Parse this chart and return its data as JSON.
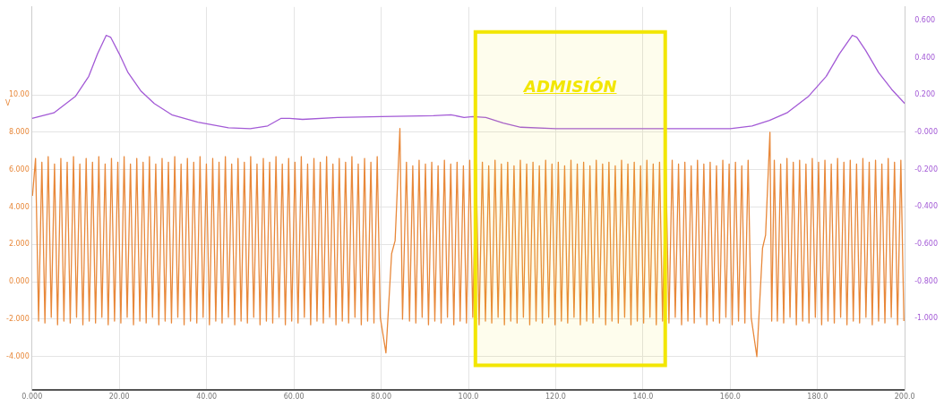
{
  "chart_data": {
    "type": "line",
    "ylabel": "V",
    "grid": true,
    "legend": false,
    "xlim": [
      0,
      200
    ],
    "ylim": [
      -5.8,
      14.7
    ],
    "y2lim": [
      -1.384,
      0.672
    ],
    "xticks": [
      {
        "value": 0,
        "label": "0.000"
      },
      {
        "value": 20,
        "label": "20.00"
      },
      {
        "value": 40,
        "label": "40.00"
      },
      {
        "value": 60,
        "label": "60.00"
      },
      {
        "value": 80,
        "label": "80.00"
      },
      {
        "value": 100,
        "label": "100.0"
      },
      {
        "value": 120,
        "label": "120.0"
      },
      {
        "value": 140,
        "label": "140.0"
      },
      {
        "value": 160,
        "label": "160.0"
      },
      {
        "value": 180,
        "label": "180.0"
      },
      {
        "value": 200,
        "label": "200.0"
      }
    ],
    "yticks": [
      {
        "value": -4,
        "label": "-4.000"
      },
      {
        "value": -2,
        "label": "-2.000"
      },
      {
        "value": 0,
        "label": "0.000"
      },
      {
        "value": 2,
        "label": "2.000"
      },
      {
        "value": 4,
        "label": "4.000"
      },
      {
        "value": 6,
        "label": "6.000"
      },
      {
        "value": 8,
        "label": "8.000"
      },
      {
        "value": 10,
        "label": "10.00"
      }
    ],
    "y2ticks": [
      {
        "value": -1,
        "label": "-1.000"
      },
      {
        "value": -0.8,
        "label": "-0.800"
      },
      {
        "value": -0.6,
        "label": "-0.600"
      },
      {
        "value": -0.4,
        "label": "-0.400"
      },
      {
        "value": -0.2,
        "label": "-0.200"
      },
      {
        "value": 0,
        "label": "-0.000"
      },
      {
        "value": 0.2,
        "label": "0.200"
      },
      {
        "value": 0.4,
        "label": "0.400"
      },
      {
        "value": 0.6,
        "label": "0.600"
      }
    ],
    "bands": [
      {
        "axis": "x",
        "from": 101.6,
        "to": 145.1,
        "label": "ADMISIÓN",
        "color": "#f2e600"
      }
    ],
    "series": [
      {
        "color": "#e8883a",
        "x": [
          0.1,
          0.8,
          1.5,
          2.25,
          2.95,
          3.7,
          4.4,
          5.15,
          5.85,
          6.6,
          7.3,
          8.05,
          8.75,
          9.5,
          10.2,
          10.95,
          11.65,
          12.4,
          13.1,
          13.85,
          14.55,
          15.3,
          16,
          16.75,
          17.45,
          18.2,
          18.9,
          19.65,
          20.35,
          21.1,
          21.8,
          22.55,
          23.25,
          24,
          24.7,
          25.45,
          26.15,
          26.9,
          27.6,
          28.35,
          29.05,
          29.8,
          30.5,
          31.25,
          31.95,
          32.7,
          33.4,
          34.15,
          34.85,
          35.6,
          36.3,
          37.05,
          37.75,
          38.5,
          39.2,
          39.95,
          40.65,
          41.4,
          42.1,
          42.85,
          43.55,
          44.3,
          45,
          45.75,
          46.45,
          47.2,
          47.9,
          48.65,
          49.35,
          50.1,
          50.8,
          51.55,
          52.25,
          53,
          53.7,
          54.45,
          55.15,
          55.9,
          56.6,
          57.35,
          58.05,
          58.8,
          59.5,
          60.25,
          60.95,
          61.7,
          62.4,
          63.15,
          63.85,
          64.6,
          65.3,
          66.05,
          66.75,
          67.5,
          68.2,
          68.95,
          69.65,
          70.4,
          71.1,
          71.85,
          72.55,
          73.3,
          74,
          74.75,
          75.45,
          76.2,
          76.9,
          77.65,
          78.35,
          79.1,
          79.8,
          81.1,
          82.4,
          83.2,
          84.3,
          84.9,
          85.8,
          86.5,
          87.25,
          87.95,
          88.7,
          89.4,
          90.15,
          90.85,
          91.6,
          92.3,
          93.05,
          93.75,
          94.5,
          95.2,
          95.95,
          96.65,
          97.4,
          98.1,
          98.85,
          99.55,
          100.3,
          101,
          101.75,
          102.45,
          103.2,
          103.9,
          104.65,
          105.35,
          106.1,
          106.8,
          107.55,
          108.25,
          109,
          109.7,
          110.45,
          111.15,
          111.9,
          112.6,
          113.35,
          114.05,
          114.8,
          115.5,
          116.25,
          116.95,
          117.7,
          118.4,
          119.15,
          119.85,
          120.6,
          121.3,
          122.05,
          122.75,
          123.5,
          124.2,
          124.95,
          125.65,
          126.4,
          127.1,
          127.85,
          128.55,
          129.3,
          130,
          130.75,
          131.45,
          132.2,
          132.9,
          133.65,
          134.35,
          135.1,
          135.8,
          136.55,
          137.25,
          138,
          138.7,
          139.45,
          140.15,
          140.9,
          141.6,
          142.35,
          143.05,
          143.8,
          144.5,
          145.25,
          145.95,
          146.7,
          147.4,
          148.15,
          148.85,
          149.6,
          150.3,
          151.05,
          151.75,
          152.5,
          153.2,
          153.95,
          154.65,
          155.4,
          156.1,
          156.85,
          157.55,
          158.3,
          159,
          159.75,
          160.45,
          161.2,
          161.9,
          162.65,
          163.35,
          164.1,
          164.8,
          166.1,
          167.4,
          168.1,
          169.1,
          169.5,
          170.1,
          170.8,
          171.55,
          172.25,
          173,
          173.7,
          174.45,
          175.15,
          175.9,
          176.6,
          177.35,
          178.05,
          178.8,
          179.5,
          180.25,
          180.95,
          181.7,
          182.4,
          183.15,
          183.85,
          184.6,
          185.3,
          186.05,
          186.75,
          187.5,
          188.2,
          188.95,
          189.65,
          190.4,
          191.1,
          191.85,
          192.55,
          193.3,
          194,
          194.75,
          195.45,
          196.2,
          196.9,
          197.65,
          198.35,
          199.1,
          199.8
        ],
        "values": [
          4.6,
          6.6,
          -2.1,
          6.4,
          -2.2,
          6.7,
          -1.9,
          6.3,
          -2.3,
          6.6,
          -2.1,
          6.4,
          -2.2,
          6.7,
          -1.9,
          6.3,
          -2.3,
          6.6,
          -2.1,
          6.4,
          -2.2,
          6.7,
          -1.9,
          6.3,
          -2.3,
          6.6,
          -2.1,
          6.4,
          -2.2,
          6.7,
          -1.9,
          6.3,
          -2.3,
          6.6,
          -2.1,
          6.4,
          -2.2,
          6.7,
          -1.9,
          6.3,
          -2.3,
          6.6,
          -2.1,
          6.4,
          -2.2,
          6.7,
          -1.9,
          6.3,
          -2.3,
          6.6,
          -2.1,
          6.4,
          -2.2,
          6.7,
          -1.9,
          6.3,
          -2.3,
          6.6,
          -2.1,
          6.4,
          -2.2,
          6.7,
          -1.9,
          6.3,
          -2.3,
          6.6,
          -2.1,
          6.4,
          -2.2,
          6.7,
          -1.9,
          6.3,
          -2.3,
          6.6,
          -2.1,
          6.4,
          -2.2,
          6.7,
          -1.9,
          6.3,
          -2.3,
          6.6,
          -2.1,
          6.4,
          -2.2,
          6.7,
          -1.9,
          6.3,
          -2.3,
          6.6,
          -2.1,
          6.4,
          -2.2,
          6.7,
          -1.9,
          6.3,
          -2.3,
          6.6,
          -2.1,
          6.4,
          -2.2,
          6.7,
          -1.9,
          6.3,
          -2.3,
          6.6,
          -2.1,
          6.4,
          -2.2,
          6.7,
          -1.9,
          -3.8,
          1.5,
          2.2,
          8.2,
          -2.0,
          6.4,
          -2.1,
          6.2,
          -2.2,
          6.5,
          -1.9,
          6.3,
          -2.3,
          6.4,
          -2.1,
          6.2,
          -2.2,
          6.5,
          -1.9,
          6.3,
          -2.3,
          6.4,
          -2.1,
          6.2,
          -2.2,
          6.5,
          -1.9,
          6.3,
          -2.3,
          6.4,
          -2.1,
          6.2,
          -2.2,
          6.5,
          -1.9,
          6.3,
          -2.3,
          6.4,
          -2.1,
          6.2,
          -2.2,
          6.5,
          -1.9,
          6.3,
          -2.3,
          6.4,
          -2.1,
          6.2,
          -2.2,
          6.5,
          -1.9,
          6.3,
          -2.3,
          6.4,
          -2.1,
          6.2,
          -2.2,
          6.5,
          -1.9,
          6.3,
          -2.3,
          6.4,
          -2.1,
          6.2,
          -2.2,
          6.5,
          -1.9,
          6.3,
          -2.3,
          6.4,
          -2.1,
          6.2,
          -2.2,
          6.5,
          -1.9,
          6.3,
          -2.3,
          6.4,
          -2.1,
          6.2,
          -2.2,
          6.5,
          -1.9,
          6.3,
          -2.3,
          6.4,
          -2.1,
          6.2,
          -2.2,
          6.5,
          -1.9,
          6.3,
          -2.3,
          6.4,
          -2.1,
          6.2,
          -2.2,
          6.5,
          -1.9,
          6.3,
          -2.3,
          6.4,
          -2.1,
          6.2,
          -2.2,
          6.5,
          -1.9,
          6.3,
          -2.3,
          6.4,
          -2.1,
          6.2,
          -2.2,
          6.5,
          -1.9,
          -4.0,
          1.8,
          2.5,
          8.0,
          -2.1,
          6.5,
          -2.1,
          6.3,
          -2.2,
          6.6,
          -1.9,
          6.4,
          -2.3,
          6.5,
          -2.1,
          6.3,
          -2.2,
          6.6,
          -1.9,
          6.4,
          -2.3,
          6.5,
          -2.1,
          6.3,
          -2.2,
          6.6,
          -1.9,
          6.4,
          -2.3,
          6.5,
          -2.1,
          6.3,
          -2.2,
          6.6,
          -1.9,
          6.4,
          -2.3,
          6.5,
          -2.1,
          6.3,
          -2.2,
          6.6,
          -1.9,
          6.4,
          -2.3,
          6.5,
          -2.1
        ]
      },
      {
        "color": "#a35ad6",
        "axis": "y2",
        "x": [
          0,
          5,
          10,
          13,
          15,
          17,
          18,
          20,
          22,
          25,
          28,
          32,
          38,
          45,
          50,
          54,
          57,
          59,
          62,
          70,
          80,
          92,
          96,
          99,
          101,
          104,
          108,
          112,
          120,
          140,
          160,
          165,
          169,
          173,
          178,
          182,
          185,
          188,
          189,
          191,
          194,
          197,
          200
        ],
        "values": [
          0.074,
          0.104,
          0.194,
          0.3,
          0.42,
          0.52,
          0.51,
          0.42,
          0.32,
          0.22,
          0.154,
          0.094,
          0.054,
          0.024,
          0.019,
          0.034,
          0.074,
          0.074,
          0.069,
          0.079,
          0.084,
          0.089,
          0.094,
          0.079,
          0.084,
          0.079,
          0.049,
          0.027,
          0.019,
          0.019,
          0.019,
          0.034,
          0.064,
          0.104,
          0.194,
          0.3,
          0.42,
          0.52,
          0.51,
          0.44,
          0.32,
          0.23,
          0.154
        ]
      }
    ]
  }
}
